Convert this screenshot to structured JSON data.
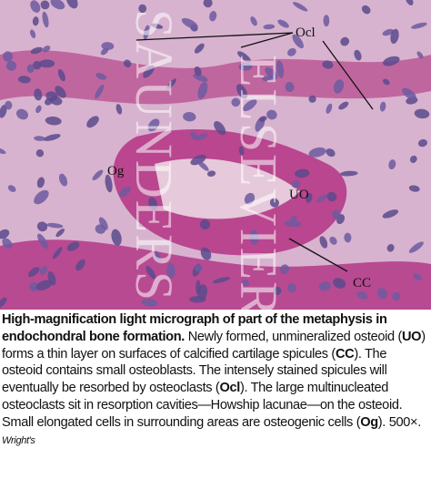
{
  "labels": [
    "Ocl",
    "Og",
    "UO",
    "CC"
  ],
  "watermark": [
    "SAUNDERS",
    "ELSEVIER"
  ],
  "caption": {
    "title": "High-magnification light micrograph of part of the metaphysis in endochondral bone formation.",
    "runs": [
      "Newly formed, unmineralized osteoid (",
      "UO",
      ") forms a thin layer on surfaces of calcified cartilage spicules (",
      "CC",
      "). The osteoid contains small osteoblasts. The intensely stained spicules will eventually be resorbed by osteoclasts (",
      "Ocl",
      "). The large multinucleated osteoclasts sit in resorption cavities—Howship lacunae—on the osteoid. Small elongated cells in surrounding areas are osteogenic cells (",
      "Og",
      "). 500×.",
      "Wright's"
    ]
  }
}
